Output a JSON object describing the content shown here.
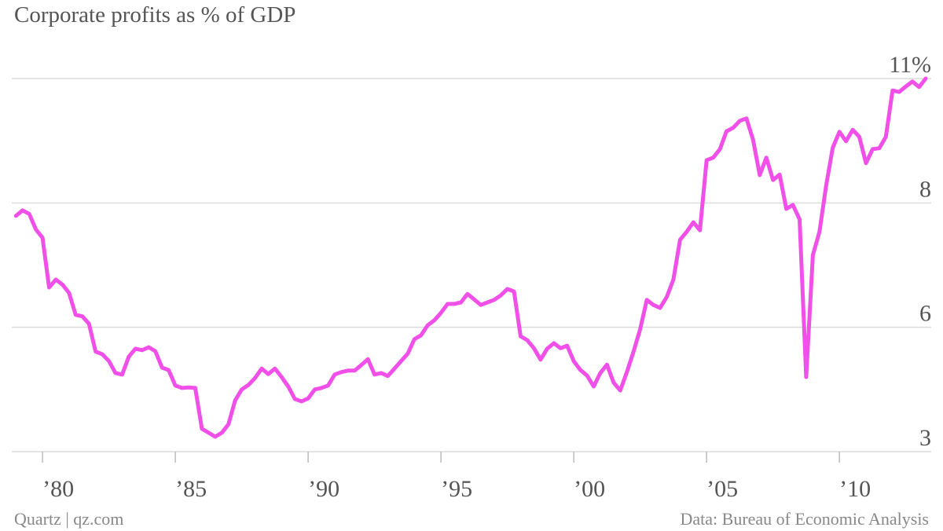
{
  "chart_data": {
    "type": "line",
    "title": "Corporate profits as % of GDP",
    "source": "Data: Bureau of Economic Analysis",
    "credit": "Quartz | qz.com",
    "x": [
      1979,
      1979.25,
      1979.5,
      1979.75,
      1980,
      1980.25,
      1980.5,
      1980.75,
      1981,
      1981.25,
      1981.5,
      1981.75,
      1982,
      1982.25,
      1982.5,
      1982.75,
      1983,
      1983.25,
      1983.5,
      1983.75,
      1984,
      1984.25,
      1984.5,
      1984.75,
      1985,
      1985.25,
      1985.5,
      1985.75,
      1986,
      1986.25,
      1986.5,
      1986.75,
      1987,
      1987.25,
      1987.5,
      1987.75,
      1988,
      1988.25,
      1988.5,
      1988.75,
      1989,
      1989.25,
      1989.5,
      1989.75,
      1990,
      1990.25,
      1990.5,
      1990.75,
      1991,
      1991.25,
      1991.5,
      1991.75,
      1992,
      1992.25,
      1992.5,
      1992.75,
      1993,
      1993.25,
      1993.5,
      1993.75,
      1994,
      1994.25,
      1994.5,
      1994.75,
      1995,
      1995.25,
      1995.5,
      1995.75,
      1996,
      1996.25,
      1996.5,
      1996.75,
      1997,
      1997.25,
      1997.5,
      1997.75,
      1998,
      1998.25,
      1998.5,
      1998.75,
      1999,
      1999.25,
      1999.5,
      1999.75,
      2000,
      2000.25,
      2000.5,
      2000.75,
      2001,
      2001.25,
      2001.5,
      2001.75,
      2002,
      2002.25,
      2002.5,
      2002.75,
      2003,
      2003.25,
      2003.5,
      2003.75,
      2004,
      2004.25,
      2004.5,
      2004.75,
      2005,
      2005.25,
      2005.5,
      2005.75,
      2006,
      2006.25,
      2006.5,
      2006.75,
      2007,
      2007.25,
      2007.5,
      2007.75,
      2008,
      2008.25,
      2008.5,
      2008.75,
      2009,
      2009.25,
      2009.5,
      2009.75,
      2010,
      2010.25,
      2010.5,
      2010.75,
      2011,
      2011.25,
      2011.5,
      2011.75,
      2012,
      2012.25,
      2012.5,
      2012.75,
      2013,
      2013.25
    ],
    "series": [
      {
        "name": "Corporate profits",
        "color": "#f050e8",
        "values": [
          8.14,
          8.25,
          8.18,
          7.87,
          7.7,
          6.7,
          6.86,
          6.76,
          6.59,
          6.15,
          6.12,
          5.97,
          5.41,
          5.36,
          5.22,
          4.98,
          4.95,
          5.31,
          5.47,
          5.44,
          5.5,
          5.42,
          5.09,
          5.04,
          4.73,
          4.68,
          4.69,
          4.68,
          3.86,
          3.78,
          3.7,
          3.78,
          3.95,
          4.43,
          4.65,
          4.74,
          4.88,
          5.07,
          4.96,
          5.07,
          4.9,
          4.71,
          4.46,
          4.41,
          4.47,
          4.65,
          4.68,
          4.73,
          4.95,
          5.0,
          5.03,
          5.03,
          5.14,
          5.26,
          4.95,
          4.98,
          4.92,
          5.07,
          5.22,
          5.37,
          5.66,
          5.74,
          5.94,
          6.04,
          6.19,
          6.37,
          6.37,
          6.4,
          6.57,
          6.46,
          6.35,
          6.4,
          6.45,
          6.54,
          6.67,
          6.62,
          5.72,
          5.64,
          5.48,
          5.25,
          5.47,
          5.58,
          5.48,
          5.53,
          5.22,
          5.04,
          4.93,
          4.71,
          4.98,
          5.15,
          4.79,
          4.63,
          5.0,
          5.41,
          5.86,
          6.45,
          6.35,
          6.29,
          6.51,
          6.86,
          7.66,
          7.82,
          8.01,
          7.85,
          9.26,
          9.31,
          9.48,
          9.84,
          9.91,
          10.05,
          10.1,
          9.67,
          8.96,
          9.31,
          8.86,
          8.97,
          8.28,
          8.36,
          8.07,
          4.9,
          7.35,
          7.82,
          8.75,
          9.51,
          9.83,
          9.64,
          9.87,
          9.73,
          9.2,
          9.48,
          9.5,
          9.73,
          10.66,
          10.63,
          10.74,
          10.84,
          10.73,
          10.9
        ]
      }
    ],
    "xlim": [
      1978.4,
      2013.9
    ],
    "xticks": [
      {
        "value": 1980,
        "label": "’80"
      },
      {
        "value": 1985,
        "label": "’85"
      },
      {
        "value": 1990,
        "label": "’90"
      },
      {
        "value": 1995,
        "label": "’95"
      },
      {
        "value": 2000,
        "label": "’00"
      },
      {
        "value": 2005,
        "label": "’05"
      },
      {
        "value": 2010,
        "label": "’10"
      }
    ],
    "ylim": [
      3.4,
      10.9
    ],
    "yticks": [
      {
        "value": 3.4,
        "label": "3"
      },
      {
        "value": 5.9,
        "label": "6"
      },
      {
        "value": 8.4,
        "label": "8"
      },
      {
        "value": 10.9,
        "label": "11%"
      }
    ],
    "grid": true
  }
}
